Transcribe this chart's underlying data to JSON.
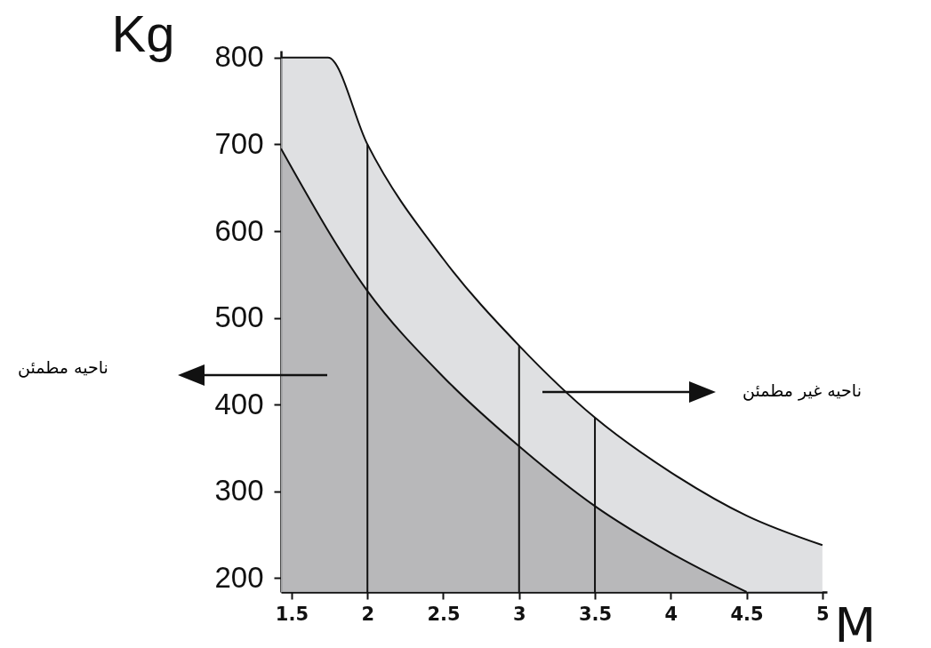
{
  "chart_data": {
    "type": "area",
    "xlabel": "M",
    "ylabel": "Kg",
    "xlim": [
      1.43,
      5.03
    ],
    "ylim": [
      184,
      808
    ],
    "xticks": [
      1.5,
      2,
      2.5,
      3,
      3.5,
      4,
      4.5,
      5
    ],
    "yticks": [
      200,
      300,
      400,
      500,
      600,
      700,
      800
    ],
    "series": [
      {
        "color": "#d2d3d5",
        "x": [
          1.43,
          1.74,
          2,
          2.5,
          3,
          3.5,
          4,
          4.5,
          5
        ],
        "values": [
          800,
          800,
          700,
          568,
          468,
          385,
          322,
          272,
          238
        ]
      },
      {
        "color": "#a6a7aa",
        "x": [
          1.43,
          2,
          2.5,
          3,
          3.5,
          4,
          4.5
        ],
        "values": [
          695,
          531,
          432,
          352,
          283,
          229,
          184
        ]
      }
    ],
    "ref_lines": [
      {
        "axis": "x",
        "value": 2
      },
      {
        "axis": "x",
        "value": 3
      },
      {
        "axis": "x",
        "value": 3.5
      }
    ],
    "annotations": [
      "ناحیه مطمئن",
      "ناحیه غیر مطمئن"
    ],
    "grid": false
  }
}
